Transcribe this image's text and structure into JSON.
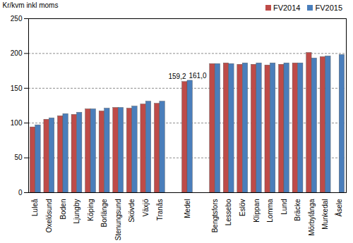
{
  "chart_data": {
    "type": "bar",
    "y_label": "Kr/kvm inkl moms",
    "categories": [
      "Luleå",
      "Oxelösund",
      "Boden",
      "Ljungby",
      "Köping",
      "Borlänge",
      "Stenungsund",
      "Skövde",
      "Växjö",
      "Tranås",
      null,
      "Medel",
      null,
      "Bengtsfors",
      "Lessebo",
      "Eslöv",
      "Klippan",
      "Lomma",
      "Lund",
      "Bräcke",
      "Mörbylånga",
      "Munkedal",
      "Åsele"
    ],
    "series": [
      {
        "name": "FV2014",
        "color": "#be4b48",
        "values": [
          94,
          105,
          110,
          112,
          120,
          117,
          122,
          121,
          127,
          128,
          null,
          159.2,
          null,
          185,
          186,
          184,
          184,
          183,
          184,
          186,
          201,
          195,
          null
        ],
        "value_labels": [
          null,
          null,
          null,
          null,
          null,
          null,
          null,
          null,
          null,
          null,
          null,
          "159,2",
          null,
          null,
          null,
          null,
          null,
          null,
          null,
          null,
          null,
          null,
          null
        ]
      },
      {
        "name": "FV2015",
        "color": "#4a7ebb",
        "values": [
          97,
          107,
          113,
          115,
          120,
          121,
          122,
          124,
          131,
          131,
          null,
          161.0,
          null,
          185,
          185,
          186,
          186,
          186,
          186,
          186,
          193,
          196,
          198
        ],
        "value_labels": [
          null,
          null,
          null,
          null,
          null,
          null,
          null,
          null,
          null,
          null,
          null,
          "161,0",
          null,
          null,
          null,
          null,
          null,
          null,
          null,
          null,
          null,
          null,
          null
        ]
      }
    ],
    "ylim": [
      0,
      250
    ],
    "yticks": [
      0,
      50,
      100,
      150,
      200,
      250
    ],
    "grid": true,
    "legend": "top-right"
  }
}
